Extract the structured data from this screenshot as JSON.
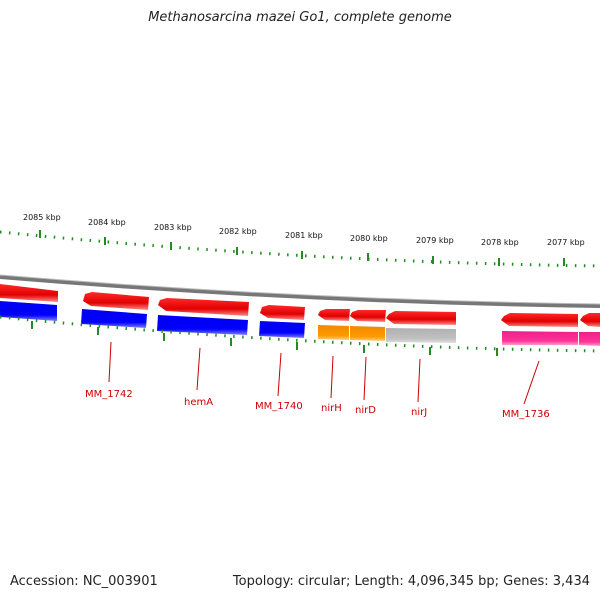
{
  "title": "Methanosarcina mazei Go1, complete genome",
  "footer": {
    "accession": "Accession: NC_003901",
    "topology": "Topology: circular; Length: 4,096,345 bp; Genes: 3,434"
  },
  "scale": {
    "labels": [
      "2085 kbp",
      "2084 kbp",
      "2083 kbp",
      "2082 kbp",
      "2081 kbp",
      "2080 kbp",
      "2079 kbp",
      "2078 kbp",
      "2077 kbp"
    ]
  },
  "genes": [
    {
      "label": "MM_1742",
      "color": "#0000ff"
    },
    {
      "label": "hemA",
      "color": "#0000ff"
    },
    {
      "label": "MM_1740",
      "color": "#0000ff"
    },
    {
      "label": "nirH",
      "color": "#ff9900"
    },
    {
      "label": "nirD",
      "color": "#ff9900"
    },
    {
      "label": "nirJ",
      "color": "#bbbbbb"
    },
    {
      "label": "MM_1736",
      "color": "#ff3399"
    }
  ],
  "colors": {
    "cds_track": "#ff0000",
    "scale_ticks": "#228b22",
    "backbone": "#888888",
    "label_color": "#cc0000"
  }
}
